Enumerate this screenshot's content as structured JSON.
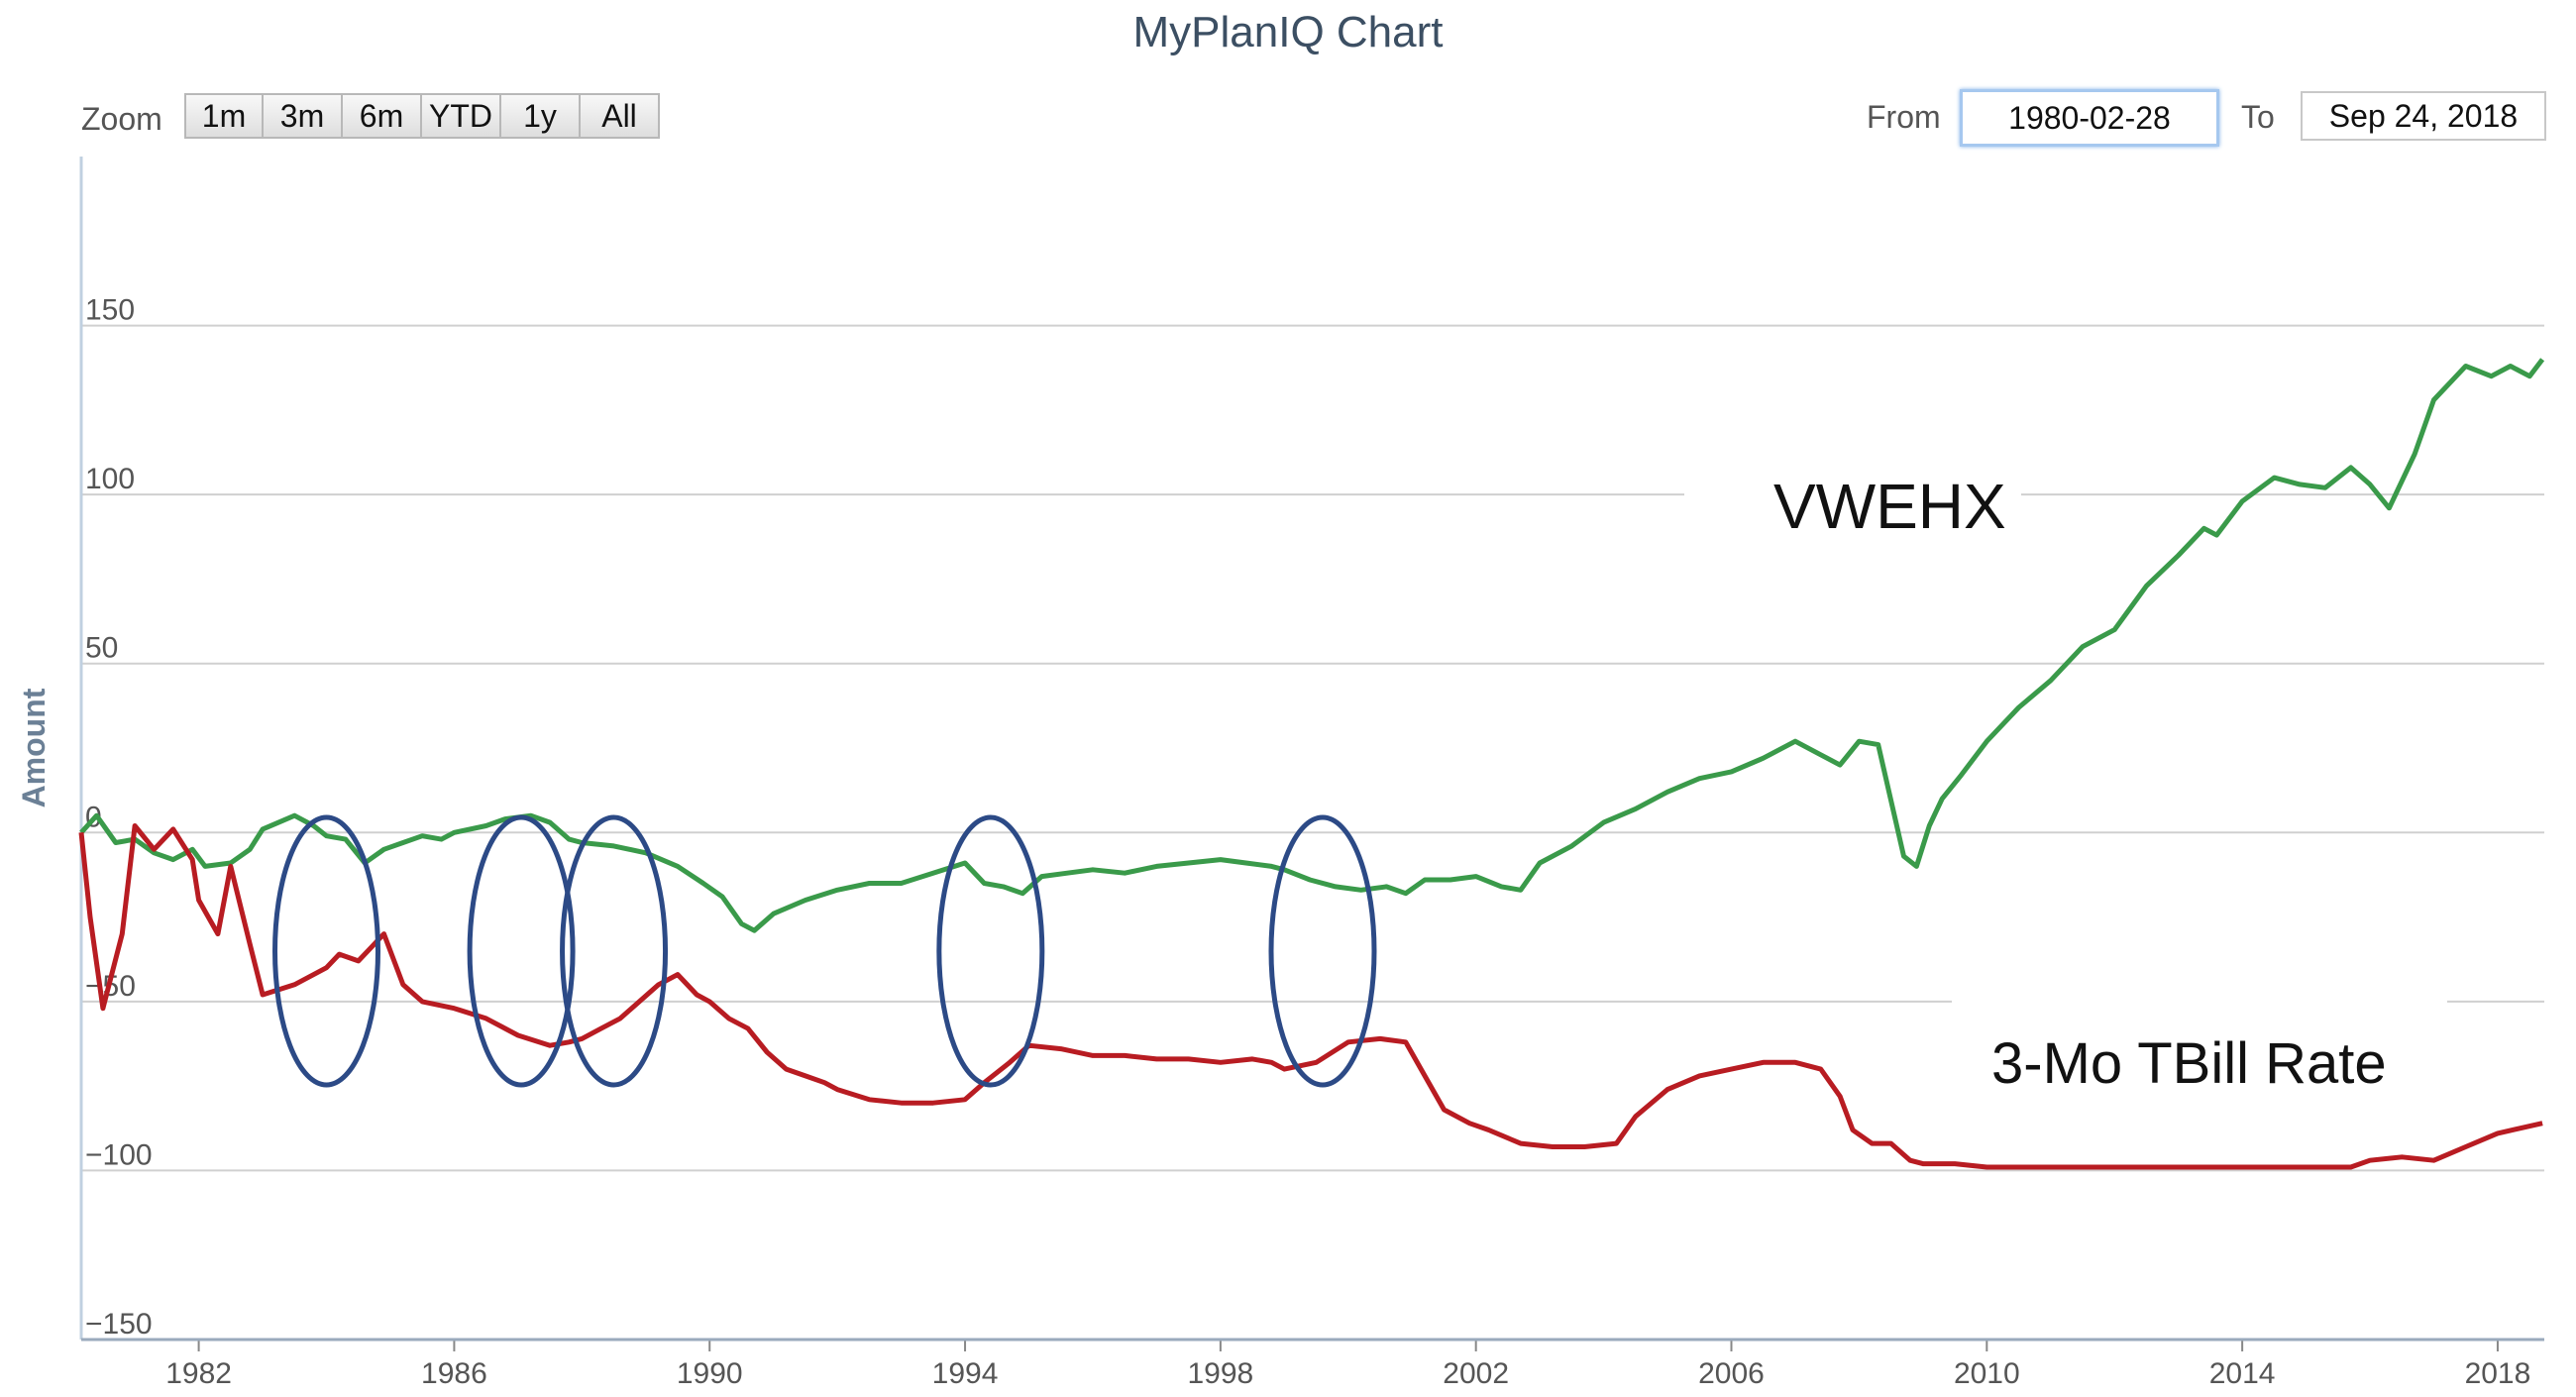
{
  "chart_title": "MyPlanIQ Chart",
  "toolbar": {
    "zoom_label": "Zoom",
    "zoom_buttons": [
      "1m",
      "3m",
      "6m",
      "YTD",
      "1y",
      "All"
    ],
    "from_label": "From",
    "from_value": "1980-02-28",
    "to_label": "To",
    "to_value": "Sep 24, 2018"
  },
  "colors": {
    "vwehx": "#3a9a4a",
    "tbill": "#b81c22",
    "annotation_ellipse": "#2c4a86",
    "grid": "#d0d0d0"
  },
  "chart_data": {
    "type": "line",
    "ylabel": "Amount",
    "xlabel": "",
    "xlim": [
      1980.16,
      2018.73
    ],
    "ylim": [
      -150,
      200
    ],
    "y_ticks": [
      150,
      100,
      50,
      0,
      -50,
      -100,
      -150
    ],
    "x_ticks": [
      1982,
      1986,
      1990,
      1994,
      1998,
      2002,
      2006,
      2010,
      2014,
      2018
    ],
    "annotations": [
      "VWEHX",
      "3-Mo TBill Rate"
    ],
    "highlighted_periods": [
      1984.0,
      1987.05,
      1988.5,
      1994.4,
      1999.6
    ],
    "series": [
      {
        "name": "VWEHX",
        "x": [
          1980.16,
          1980.4,
          1980.7,
          1981.0,
          1981.3,
          1981.6,
          1981.9,
          1982.1,
          1982.5,
          1982.8,
          1983.0,
          1983.5,
          1983.8,
          1984.0,
          1984.3,
          1984.6,
          1984.9,
          1985.2,
          1985.5,
          1985.8,
          1986.0,
          1986.5,
          1986.8,
          1987.2,
          1987.5,
          1987.8,
          1988.0,
          1988.5,
          1989.0,
          1989.5,
          1989.9,
          1990.2,
          1990.5,
          1990.7,
          1991.0,
          1991.5,
          1992.0,
          1992.5,
          1993.0,
          1993.5,
          1994.0,
          1994.3,
          1994.6,
          1994.9,
          1995.2,
          1995.6,
          1996.0,
          1996.5,
          1997.0,
          1997.5,
          1998.0,
          1998.4,
          1998.8,
          1999.0,
          1999.4,
          1999.8,
          2000.2,
          2000.6,
          2000.9,
          2001.2,
          2001.6,
          2002.0,
          2002.4,
          2002.7,
          2003.0,
          2003.5,
          2004.0,
          2004.5,
          2005.0,
          2005.5,
          2006.0,
          2006.5,
          2007.0,
          2007.4,
          2007.7,
          2008.0,
          2008.3,
          2008.7,
          2008.9,
          2009.1,
          2009.3,
          2009.6,
          2010.0,
          2010.5,
          2011.0,
          2011.5,
          2011.8,
          2012.0,
          2012.5,
          2013.0,
          2013.4,
          2013.6,
          2014.0,
          2014.5,
          2014.9,
          2015.3,
          2015.7,
          2016.0,
          2016.3,
          2016.7,
          2017.0,
          2017.5,
          2017.9,
          2018.2,
          2018.5,
          2018.7
        ],
        "y": [
          0,
          5,
          -3,
          -2,
          -6,
          -8,
          -5,
          -10,
          -9,
          -5,
          1,
          5,
          2,
          -1,
          -2,
          -9,
          -5,
          -3,
          -1,
          -2,
          0,
          2,
          4,
          5,
          3,
          -2,
          -3,
          -4,
          -6,
          -10,
          -15,
          -19,
          -27,
          -29,
          -24,
          -20,
          -17,
          -15,
          -15,
          -12,
          -9,
          -15,
          -16,
          -18,
          -13,
          -12,
          -11,
          -12,
          -10,
          -9,
          -8,
          -9,
          -10,
          -11,
          -14,
          -16,
          -17,
          -16,
          -18,
          -14,
          -14,
          -13,
          -16,
          -17,
          -9,
          -4,
          3,
          7,
          12,
          16,
          18,
          22,
          27,
          23,
          20,
          27,
          26,
          -7,
          -10,
          2,
          10,
          17,
          27,
          37,
          45,
          55,
          58,
          60,
          73,
          82,
          90,
          88,
          98,
          105,
          103,
          102,
          108,
          103,
          96,
          112,
          128,
          138,
          135,
          138,
          135,
          140
        ]
      },
      {
        "name": "3-Mo TBill Rate",
        "x": [
          1980.16,
          1980.3,
          1980.5,
          1980.8,
          1981.0,
          1981.3,
          1981.6,
          1981.9,
          1982.0,
          1982.3,
          1982.5,
          1982.8,
          1983.0,
          1983.5,
          1983.8,
          1984.0,
          1984.2,
          1984.5,
          1984.7,
          1984.9,
          1985.2,
          1985.5,
          1986.0,
          1986.5,
          1987.0,
          1987.5,
          1987.8,
          1988.0,
          1988.3,
          1988.6,
          1988.9,
          1989.2,
          1989.5,
          1989.8,
          1990.0,
          1990.3,
          1990.6,
          1990.9,
          1991.2,
          1991.5,
          1991.8,
          1992.0,
          1992.5,
          1993.0,
          1993.5,
          1994.0,
          1994.3,
          1994.7,
          1995.0,
          1995.5,
          1996.0,
          1996.5,
          1997.0,
          1997.5,
          1998.0,
          1998.5,
          1998.8,
          1999.0,
          1999.5,
          2000.0,
          2000.5,
          2000.9,
          2001.2,
          2001.5,
          2001.9,
          2002.2,
          2002.7,
          2003.2,
          2003.7,
          2004.2,
          2004.5,
          2005.0,
          2005.5,
          2006.0,
          2006.5,
          2007.0,
          2007.4,
          2007.7,
          2007.9,
          2008.2,
          2008.5,
          2008.8,
          2009.0,
          2009.5,
          2010.0,
          2011.0,
          2012.0,
          2013.0,
          2014.0,
          2015.0,
          2015.7,
          2016.0,
          2016.5,
          2017.0,
          2017.5,
          2018.0,
          2018.7
        ],
        "y": [
          0,
          -25,
          -52,
          -30,
          2,
          -5,
          1,
          -8,
          -20,
          -30,
          -10,
          -33,
          -48,
          -45,
          -42,
          -40,
          -36,
          -38,
          -34,
          -30,
          -45,
          -50,
          -52,
          -55,
          -60,
          -63,
          -62,
          -61,
          -58,
          -55,
          -50,
          -45,
          -42,
          -48,
          -50,
          -55,
          -58,
          -65,
          -70,
          -72,
          -74,
          -76,
          -79,
          -80,
          -80,
          -79,
          -74,
          -68,
          -63,
          -64,
          -66,
          -66,
          -67,
          -67,
          -68,
          -67,
          -68,
          -70,
          -68,
          -62,
          -61,
          -62,
          -72,
          -82,
          -86,
          -88,
          -92,
          -93,
          -93,
          -92,
          -84,
          -76,
          -72,
          -70,
          -68,
          -68,
          -70,
          -78,
          -88,
          -92,
          -92,
          -97,
          -98,
          -98,
          -99,
          -99,
          -99,
          -99,
          -99,
          -99,
          -99,
          -97,
          -96,
          -97,
          -93,
          -89,
          -86
        ]
      }
    ]
  }
}
